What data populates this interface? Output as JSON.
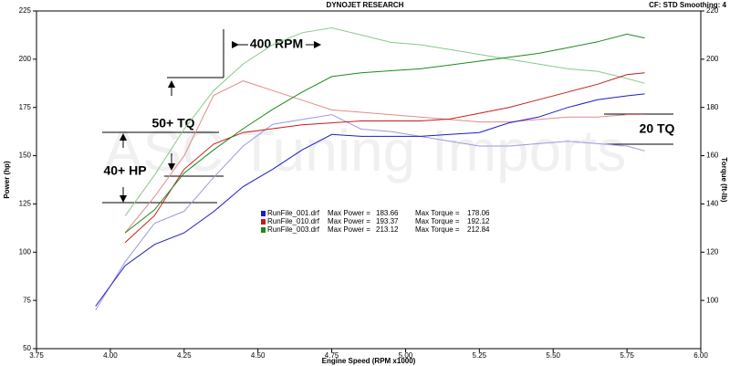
{
  "chart_data": {
    "type": "line",
    "title": "DYNOJET RESEARCH",
    "subtitle": "CF: STD   Smoothing: 4",
    "watermark": "ASC Tuning Imports",
    "x_label": "Engine Speed (RPM x1000)",
    "y_label": "Power (hp)",
    "y2_label": "Torque (ft-lb)",
    "xlim": [
      3.75,
      6.0
    ],
    "xticks": [
      3.75,
      {
        "value": 4.0,
        "label": "4.00"
      },
      4.25,
      {
        "value": 4.5,
        "label": "4.50"
      },
      4.75,
      {
        "value": 5.0,
        "label": "5.00"
      },
      5.25,
      {
        "value": 5.5,
        "label": "5.50"
      },
      5.75,
      {
        "value": 6.0,
        "label": "6.00"
      }
    ],
    "ylim": [
      50,
      225
    ],
    "yticks": [
      50,
      75,
      100,
      125,
      150,
      175,
      200,
      225
    ],
    "y2lim": [
      80,
      220
    ],
    "y2ticks": [
      100,
      120,
      140,
      160,
      180,
      200,
      220
    ],
    "grid": false,
    "x": [
      3.95,
      4.05,
      4.15,
      4.25,
      4.35,
      4.45,
      4.55,
      4.65,
      4.75,
      4.85,
      4.95,
      5.05,
      5.15,
      5.25,
      5.35,
      5.45,
      5.55,
      5.65,
      5.75,
      5.81
    ],
    "legend_power_label": "Max Power =",
    "legend_torque_label": "Max Torque =",
    "series": [
      {
        "name": "RunFile_001.drf",
        "color": "#1c1cc8",
        "max_power": 183.66,
        "max_torque": 178.06,
        "values": [
          72,
          93,
          104,
          110,
          121,
          134,
          143,
          153,
          161,
          160,
          160,
          160,
          161,
          162,
          167,
          170,
          175,
          179,
          181,
          182
        ]
      },
      {
        "name": "RunFile_010.drf",
        "color": "#c81c1c",
        "max_power": 193.37,
        "max_torque": 192.12,
        "values": [
          null,
          105,
          119,
          143,
          156,
          162,
          164,
          166,
          167,
          168,
          168,
          168,
          169,
          172,
          175,
          179,
          183,
          187,
          192,
          193
        ]
      },
      {
        "name": "RunFile_003.drf",
        "color": "#1c8a1c",
        "max_power": 213.12,
        "max_torque": 212.84,
        "values": [
          null,
          110,
          122,
          141,
          153,
          164,
          174,
          183,
          191,
          193,
          194,
          195,
          197,
          199,
          201,
          203,
          206,
          209,
          213,
          211
        ]
      }
    ],
    "torque_series": [
      {
        "color": "#9a9ae0",
        "axis": "y2",
        "values": [
          96,
          116,
          132,
          137,
          151,
          164,
          173,
          175,
          177,
          171,
          170,
          168,
          166,
          164,
          164,
          165,
          166,
          165,
          164,
          162
        ]
      },
      {
        "color": "#e48a8a",
        "axis": "y2",
        "values": [
          null,
          128,
          143,
          160,
          185,
          191,
          187,
          183,
          179,
          178,
          177,
          176,
          175,
          174,
          174,
          175,
          176,
          176,
          177,
          177
        ]
      },
      {
        "color": "#8ac88a",
        "axis": "y2",
        "values": [
          null,
          135,
          152,
          171,
          187,
          198,
          206,
          211,
          213,
          210,
          207,
          206,
          204,
          202,
          200,
          198,
          196,
          195,
          192,
          190
        ]
      }
    ],
    "annotations": [
      "400 RPM",
      "50+ TQ",
      "40+ HP",
      "20 TQ"
    ]
  }
}
